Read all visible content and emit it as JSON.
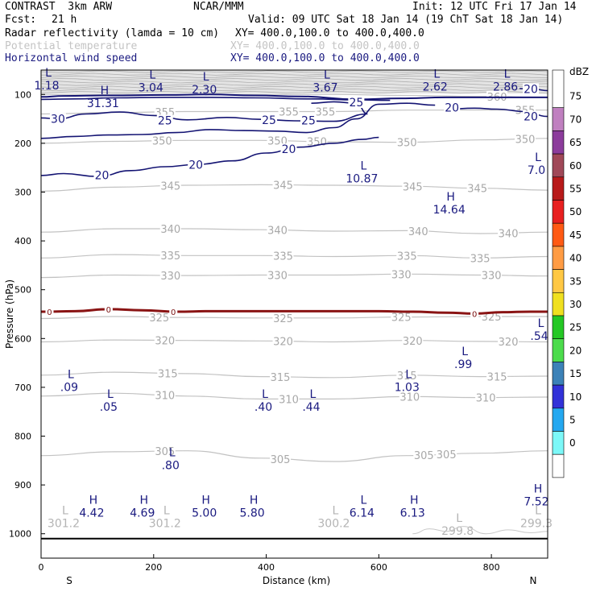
{
  "header": {
    "model": "CONTRAST  3km ARW",
    "org": "NCAR/MMM",
    "init": "Init: 12 UTC Fri 17 Jan 14",
    "fcst_label": "Fcst:",
    "fcst_value": "21 h",
    "valid": "Valid: 09 UTC Sat 18 Jan 14 (19 ChT Sat 18 Jan 14)",
    "fields": [
      {
        "name": "Radar reflectivity (lamda = 10 cm)",
        "xy": "XY= 400.0,100.0 to 400.0,400.0",
        "style": "black"
      },
      {
        "name": "Potential temperature",
        "xy": "XY= 400.0,100.0 to 400.0,400.0",
        "style": "gray"
      },
      {
        "name": "Horizontal wind speed",
        "xy": "XY= 400.0,100.0 to 400.0,400.0",
        "style": "navy"
      }
    ]
  },
  "chart_data": {
    "type": "cross-section",
    "xlabel": "Distance (km)",
    "ylabel": "Pressure (hPa)",
    "xlim": [
      0,
      900
    ],
    "ylim": [
      1050,
      50
    ],
    "x_ticks": [
      0,
      200,
      400,
      600,
      800
    ],
    "y_ticks": [
      100,
      200,
      300,
      400,
      500,
      600,
      700,
      800,
      900,
      1000
    ],
    "x_end_labels": {
      "left": "S",
      "right": "N"
    },
    "colorbar": {
      "unit": "dBZ",
      "levels": [
        75,
        70,
        65,
        60,
        55,
        50,
        45,
        40,
        35,
        30,
        25,
        20,
        15,
        10,
        5,
        0
      ],
      "colors": [
        "#ffffff",
        "#c080c0",
        "#8c3c9c",
        "#a04858",
        "#b81a1a",
        "#e82020",
        "#ff5a14",
        "#ff9c44",
        "#ffc844",
        "#f0e020",
        "#24c824",
        "#4cdc4c",
        "#3c82b8",
        "#3232d8",
        "#24a8f0",
        "#7cf8f8",
        "#ffffff"
      ]
    },
    "theta_isentropes": [
      {
        "level": 305,
        "p": [
          840,
          832,
          830,
          845,
          852,
          840,
          835,
          830
        ],
        "labels": [
          {
            "x": 220,
            "text": "305"
          },
          {
            "x": 425,
            "text": "305"
          },
          {
            "x": 680,
            "text": "305"
          },
          {
            "x": 720,
            "text": "305"
          }
        ]
      },
      {
        "level": 310,
        "p": [
          718,
          712,
          718,
          724,
          724,
          719,
          721,
          720
        ],
        "labels": [
          {
            "x": 220,
            "text": "310"
          },
          {
            "x": 440,
            "text": "310"
          },
          {
            "x": 655,
            "text": "310"
          },
          {
            "x": 790,
            "text": "310"
          }
        ]
      },
      {
        "level": 315,
        "p": [
          675,
          669,
          672,
          678,
          680,
          675,
          678,
          677
        ],
        "labels": [
          {
            "x": 225,
            "text": "315"
          },
          {
            "x": 425,
            "text": "315"
          },
          {
            "x": 650,
            "text": "315"
          },
          {
            "x": 810,
            "text": "315"
          }
        ]
      },
      {
        "level": 320,
        "p": [
          607,
          603,
          604,
          605,
          607,
          604,
          606,
          607
        ],
        "labels": [
          {
            "x": 220,
            "text": "320"
          },
          {
            "x": 430,
            "text": "320"
          },
          {
            "x": 660,
            "text": "320"
          },
          {
            "x": 830,
            "text": "320"
          }
        ]
      },
      {
        "level": 325,
        "p": [
          559,
          555,
          557,
          558,
          558,
          556,
          555,
          555
        ],
        "labels": [
          {
            "x": 210,
            "text": "325"
          },
          {
            "x": 430,
            "text": "325"
          },
          {
            "x": 640,
            "text": "325"
          },
          {
            "x": 800,
            "text": "325"
          }
        ]
      },
      {
        "level": 330,
        "p": [
          475,
          470,
          471,
          470,
          470,
          468,
          470,
          472
        ],
        "labels": [
          {
            "x": 230,
            "text": "330"
          },
          {
            "x": 420,
            "text": "330"
          },
          {
            "x": 640,
            "text": "330"
          },
          {
            "x": 800,
            "text": "330"
          }
        ]
      },
      {
        "level": 335,
        "p": [
          435,
          428,
          430,
          430,
          432,
          430,
          435,
          432
        ],
        "labels": [
          {
            "x": 230,
            "text": "335"
          },
          {
            "x": 430,
            "text": "335"
          },
          {
            "x": 650,
            "text": "335"
          },
          {
            "x": 780,
            "text": "335"
          }
        ]
      },
      {
        "level": 340,
        "p": [
          382,
          375,
          375,
          377,
          380,
          379,
          385,
          382
        ],
        "labels": [
          {
            "x": 230,
            "text": "340"
          },
          {
            "x": 420,
            "text": "340"
          },
          {
            "x": 670,
            "text": "340"
          },
          {
            "x": 830,
            "text": "340"
          }
        ]
      },
      {
        "level": 345,
        "p": [
          298,
          290,
          286,
          285,
          286,
          288,
          292,
          296
        ],
        "labels": [
          {
            "x": 230,
            "text": "345"
          },
          {
            "x": 430,
            "text": "345"
          },
          {
            "x": 660,
            "text": "345"
          },
          {
            "x": 775,
            "text": "345"
          }
        ]
      },
      {
        "level": 350,
        "p": [
          200,
          196,
          194,
          194,
          197,
          198,
          193,
          190
        ],
        "labels": [
          {
            "x": 215,
            "text": "350"
          },
          {
            "x": 420,
            "text": "350"
          },
          {
            "x": 490,
            "text": "350"
          },
          {
            "x": 650,
            "text": "350"
          },
          {
            "x": 860,
            "text": "350"
          }
        ]
      },
      {
        "level": 355,
        "p": [
          140,
          137,
          135,
          135,
          135,
          132,
          132,
          132
        ],
        "labels": [
          {
            "x": 220,
            "text": "355"
          },
          {
            "x": 440,
            "text": "355"
          },
          {
            "x": 505,
            "text": "355"
          },
          {
            "x": 860,
            "text": "355"
          }
        ]
      },
      {
        "level": 360,
        "p": [
          100,
          100,
          100,
          100,
          100,
          102,
          104,
          106
        ],
        "labels": [
          {
            "x": 810,
            "text": "360"
          }
        ]
      }
    ],
    "theta_x": [
      0,
      130,
      260,
      390,
      520,
      650,
      780,
      900
    ],
    "wind_labels": [
      {
        "x": 30,
        "p": 150,
        "text": "30"
      },
      {
        "x": 220,
        "p": 153,
        "text": "25"
      },
      {
        "x": 405,
        "p": 152,
        "text": "25"
      },
      {
        "x": 475,
        "p": 153,
        "text": "25"
      },
      {
        "x": 560,
        "p": 116,
        "text": "25"
      },
      {
        "x": 730,
        "p": 127,
        "text": "20"
      },
      {
        "x": 870,
        "p": 145,
        "text": "20"
      },
      {
        "x": 870,
        "p": 89,
        "text": "20"
      },
      {
        "x": 108,
        "p": 265,
        "text": "20"
      },
      {
        "x": 275,
        "p": 244,
        "text": "20"
      },
      {
        "x": 440,
        "p": 212,
        "text": "20"
      }
    ],
    "zero_labels": [
      {
        "x": 15,
        "text": "0"
      },
      {
        "x": 120,
        "text": "0"
      },
      {
        "x": 235,
        "text": "0"
      },
      {
        "x": 770,
        "text": "0"
      }
    ],
    "extrema": [
      {
        "type": "L",
        "x": 10,
        "p": 70,
        "value": "1.18",
        "color": "navy"
      },
      {
        "type": "L",
        "x": 195,
        "p": 74,
        "value": "3.04",
        "color": "navy"
      },
      {
        "type": "L",
        "x": 290,
        "p": 78,
        "value": "2.30",
        "color": "navy"
      },
      {
        "type": "L",
        "x": 505,
        "p": 74,
        "value": "3.67",
        "color": "navy"
      },
      {
        "type": "L",
        "x": 700,
        "p": 72,
        "value": "2.62",
        "color": "navy"
      },
      {
        "type": "L",
        "x": 825,
        "p": 72,
        "value": "2.86",
        "color": "navy"
      },
      {
        "type": "H",
        "x": 110,
        "p": 106,
        "value": "31.31",
        "color": "navy"
      },
      {
        "type": "L",
        "x": 570,
        "p": 260,
        "value": "10.87",
        "color": "navy"
      },
      {
        "type": "L",
        "x": 880,
        "p": 243,
        "value": "7.0",
        "color": "navy"
      },
      {
        "type": "H",
        "x": 725,
        "p": 324,
        "value": "14.64",
        "color": "navy"
      },
      {
        "type": "L",
        "x": 885,
        "p": 583,
        "value": ".54",
        "color": "navy"
      },
      {
        "type": "L",
        "x": 750,
        "p": 641,
        "value": ".99",
        "color": "navy"
      },
      {
        "type": "L",
        "x": 50,
        "p": 688,
        "value": ".09",
        "color": "navy"
      },
      {
        "type": "L",
        "x": 650,
        "p": 688,
        "value": "1.03",
        "color": "navy"
      },
      {
        "type": "L",
        "x": 120,
        "p": 728,
        "value": ".05",
        "color": "navy"
      },
      {
        "type": "L",
        "x": 395,
        "p": 728,
        "value": ".40",
        "color": "navy"
      },
      {
        "type": "L",
        "x": 480,
        "p": 728,
        "value": ".44",
        "color": "navy"
      },
      {
        "type": "L",
        "x": 230,
        "p": 848,
        "value": ".80",
        "color": "navy"
      },
      {
        "type": "H",
        "x": 880,
        "p": 922,
        "value": "7.52",
        "color": "navy"
      },
      {
        "type": "H",
        "x": 90,
        "p": 945,
        "value": "4.42",
        "color": "navy"
      },
      {
        "type": "H",
        "x": 180,
        "p": 945,
        "value": "4.69",
        "color": "navy"
      },
      {
        "type": "H",
        "x": 290,
        "p": 945,
        "value": "5.00",
        "color": "navy"
      },
      {
        "type": "H",
        "x": 375,
        "p": 945,
        "value": "5.80",
        "color": "navy"
      },
      {
        "type": "L",
        "x": 570,
        "p": 945,
        "value": "6.14",
        "color": "navy"
      },
      {
        "type": "H",
        "x": 660,
        "p": 945,
        "value": "6.13",
        "color": "navy"
      },
      {
        "type": "L",
        "x": 40,
        "p": 967,
        "value": "301.2",
        "color": "gray"
      },
      {
        "type": "L",
        "x": 220,
        "p": 967,
        "value": "301.2",
        "color": "gray"
      },
      {
        "type": "L",
        "x": 520,
        "p": 967,
        "value": "300.2",
        "color": "gray"
      },
      {
        "type": "L",
        "x": 740,
        "p": 982,
        "value": "299.8",
        "color": "gray"
      },
      {
        "type": "L",
        "x": 880,
        "p": 967,
        "value": "299.3",
        "color": "gray"
      }
    ]
  }
}
